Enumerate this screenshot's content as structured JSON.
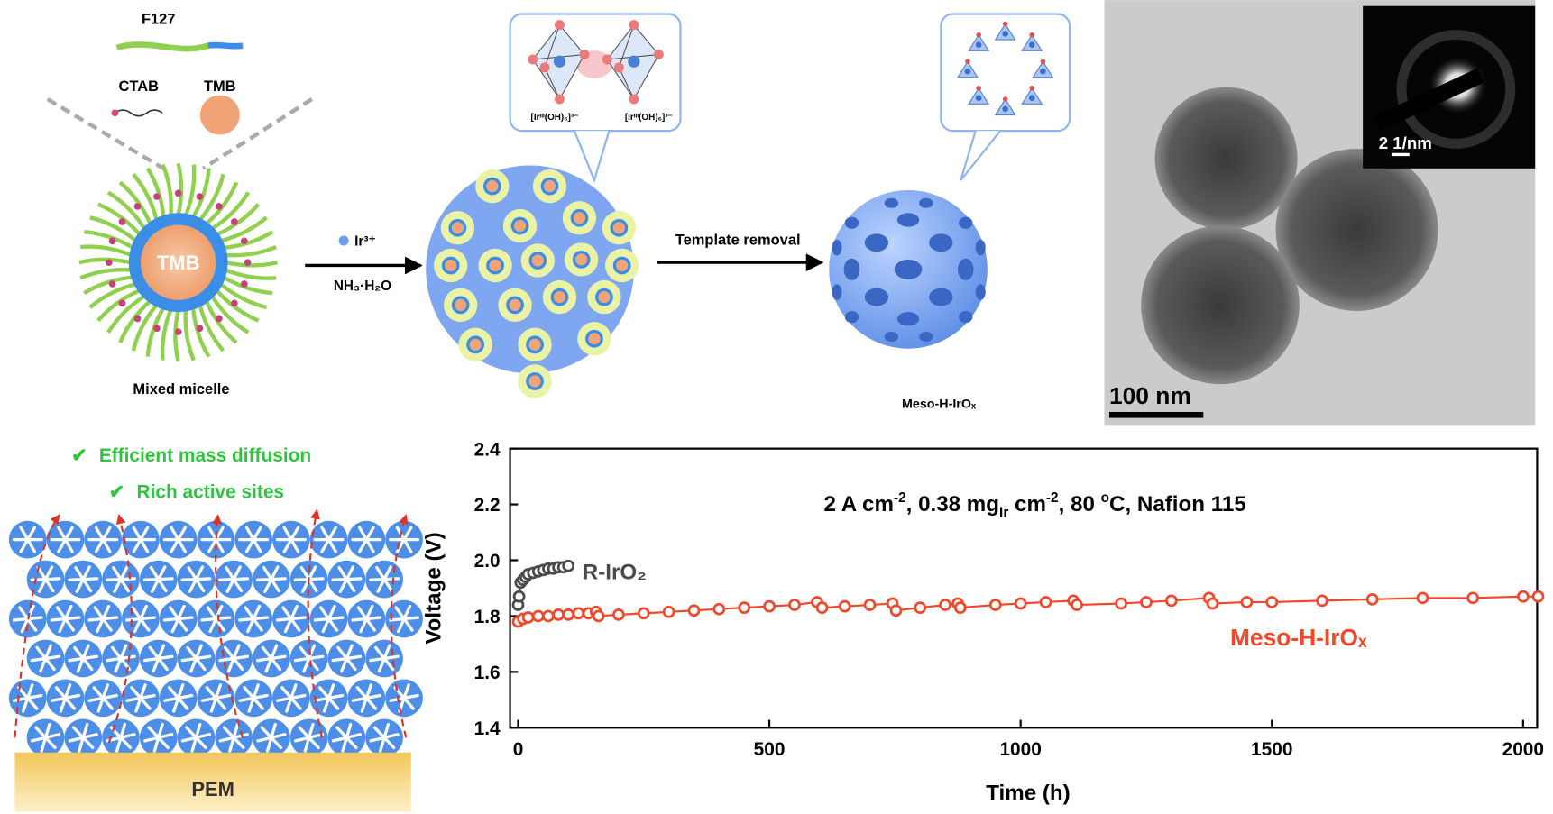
{
  "schematic": {
    "f127": "F127",
    "ctab": "CTAB",
    "tmb": "TMB",
    "core": "TMB",
    "micelle": "Mixed micelle",
    "ion": "Ir³⁺",
    "base": "NH₃·H₂O",
    "step": "Template removal",
    "complex_left": "[Irᴵᴵᴵ(OH)₆]³⁻",
    "complex_right": "[Irᴵᴵᴵ(OH)₆]³⁻",
    "product": "Meso-H-IrOₓ"
  },
  "tem": {
    "inset_scale": "2 1/nm",
    "scale": "100 nm"
  },
  "electrode": {
    "benefits": [
      "Efficient mass diffusion",
      "Rich active sites"
    ],
    "membrane": "PEM"
  },
  "chart_data": {
    "type": "line",
    "annotation": [
      "2 A cm",
      "-2",
      ", 0.38 mg",
      "Ir",
      " cm",
      "-2",
      ", 80 ",
      "o",
      "C, Nafion 115"
    ],
    "xlabel": "Time (h)",
    "ylabel": "Voltage (V)",
    "xlim": [
      -16,
      2028
    ],
    "ylim": [
      1.4,
      2.4
    ],
    "xticks": [
      0,
      500,
      1000,
      1500,
      2000
    ],
    "yticks": [
      1.4,
      1.6,
      1.8,
      {
        "value": 2,
        "label": "2.0"
      },
      2.2,
      2.4
    ],
    "series": [
      {
        "name": "R-IrO₂",
        "color": "#4a4a4a",
        "x": [
          0,
          2,
          5,
          10,
          15,
          20,
          30,
          40,
          50,
          60,
          70,
          80,
          90,
          100
        ],
        "values": [
          1.84,
          1.87,
          1.92,
          1.93,
          1.94,
          1.95,
          1.955,
          1.96,
          1.965,
          1.97,
          1.97,
          1.975,
          1.975,
          1.98
        ]
      },
      {
        "name": "Meso-H-IrOₓ",
        "color": "#f2482a",
        "x": [
          0,
          10,
          20,
          40,
          60,
          80,
          100,
          120,
          140,
          155,
          160,
          200,
          250,
          300,
          350,
          400,
          450,
          500,
          550,
          595,
          605,
          650,
          700,
          745,
          752,
          800,
          850,
          875,
          880,
          950,
          1000,
          1050,
          1105,
          1112,
          1200,
          1250,
          1300,
          1375,
          1382,
          1450,
          1500,
          1600,
          1700,
          1800,
          1900,
          2000,
          2030
        ],
        "values": [
          1.78,
          1.79,
          1.795,
          1.8,
          1.8,
          1.805,
          1.805,
          1.81,
          1.81,
          1.815,
          1.8,
          1.805,
          1.81,
          1.815,
          1.82,
          1.825,
          1.83,
          1.835,
          1.84,
          1.85,
          1.83,
          1.835,
          1.84,
          1.845,
          1.82,
          1.83,
          1.84,
          1.845,
          1.83,
          1.84,
          1.845,
          1.85,
          1.855,
          1.84,
          1.845,
          1.85,
          1.855,
          1.865,
          1.845,
          1.85,
          1.85,
          1.855,
          1.86,
          1.865,
          1.865,
          1.87,
          1.87
        ]
      }
    ]
  }
}
